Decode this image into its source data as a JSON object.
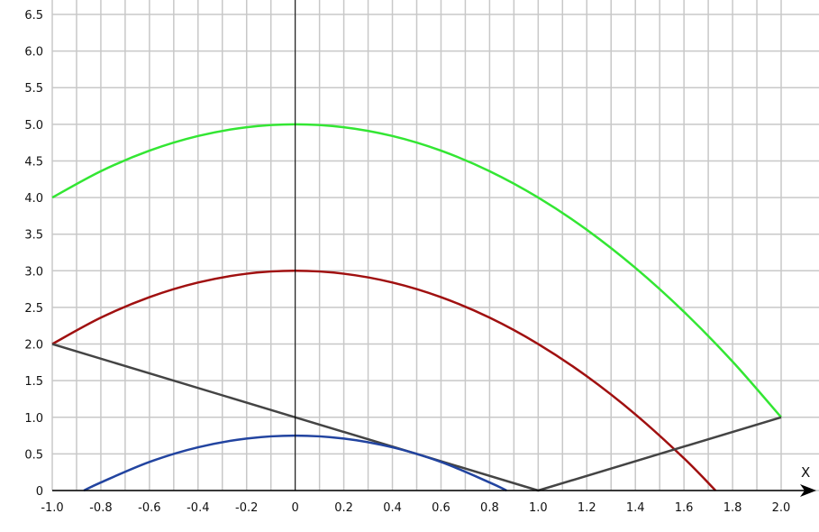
{
  "chart_data": {
    "type": "line",
    "title": "",
    "xlabel": "X",
    "ylabel": "",
    "xlim": [
      -1.0,
      2.0
    ],
    "ylim": [
      0,
      6.5
    ],
    "grid": true,
    "legend": "none",
    "x_ticks": [
      "-1.0",
      "-0.8",
      "-0.6",
      "-0.4",
      "-0.2",
      "0",
      "0.2",
      "0.4",
      "0.6",
      "0.8",
      "1.0",
      "1.2",
      "1.4",
      "1.6",
      "1.8",
      "2.0"
    ],
    "y_ticks": [
      "0",
      "0.5",
      "1.0",
      "1.5",
      "2.0",
      "2.5",
      "3.0",
      "3.5",
      "4.0",
      "4.5",
      "5.0",
      "5.5",
      "6.0",
      "6.5"
    ],
    "series": [
      {
        "color": "#33e633",
        "x": [
          -1.0,
          -0.8,
          -0.6,
          -0.4,
          -0.2,
          0,
          0.2,
          0.4,
          0.6,
          0.8,
          1.0,
          1.2,
          1.4,
          1.6,
          1.8,
          2.0
        ],
        "y": [
          4.0,
          4.36,
          4.64,
          4.84,
          4.96,
          5.0,
          4.96,
          4.84,
          4.64,
          4.36,
          4.0,
          3.56,
          3.04,
          2.44,
          1.76,
          1.0
        ]
      },
      {
        "color": "#a01010",
        "x": [
          -1.0,
          -0.8,
          -0.6,
          -0.4,
          -0.2,
          0,
          0.2,
          0.4,
          0.6,
          0.8,
          1.0,
          1.2,
          1.4,
          1.6,
          1.73
        ],
        "y": [
          2.0,
          2.36,
          2.64,
          2.84,
          2.96,
          3.0,
          2.96,
          2.84,
          2.64,
          2.36,
          2.0,
          1.56,
          1.04,
          0.44,
          0.0
        ]
      },
      {
        "color": "#444444",
        "x": [
          -1.0,
          0,
          1.0,
          2.0
        ],
        "y": [
          2.0,
          1.0,
          0.0,
          1.0
        ]
      },
      {
        "color": "#2244a0",
        "x": [
          -0.87,
          -0.8,
          -0.6,
          -0.4,
          -0.2,
          0,
          0.2,
          0.4,
          0.6,
          0.8,
          0.87
        ],
        "y": [
          0.0,
          0.11,
          0.39,
          0.59,
          0.71,
          0.75,
          0.71,
          0.59,
          0.39,
          0.11,
          0.0
        ]
      }
    ]
  }
}
